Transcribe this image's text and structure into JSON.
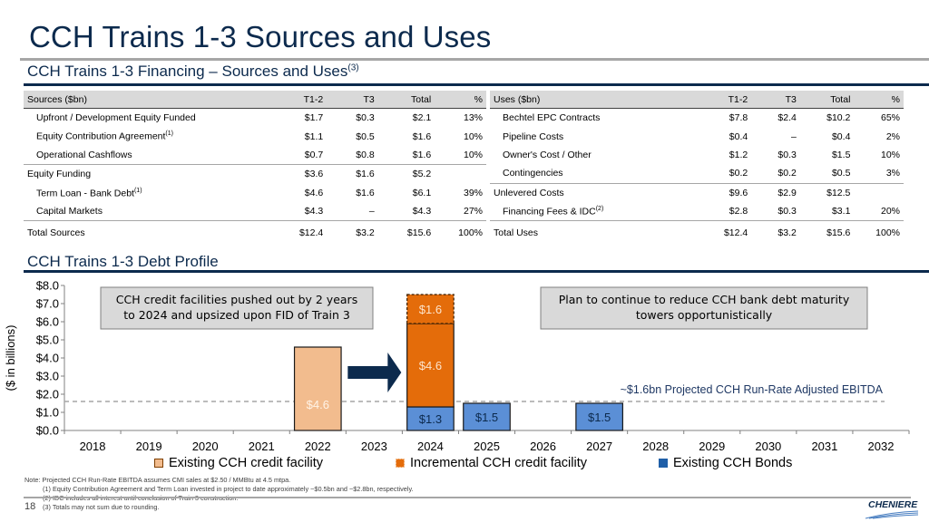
{
  "page": {
    "title": "CCH Trains 1-3 Sources and Uses",
    "financing_heading": "CCH Trains 1-3 Financing – Sources and Uses",
    "financing_heading_sup": "(3)",
    "debt_heading": "CCH Trains 1-3 Debt Profile",
    "page_number": "18",
    "logo_text": "CHENIERE"
  },
  "sources": {
    "header": [
      "Sources ($bn)",
      "T1-2",
      "T3",
      "Total",
      "%"
    ],
    "rows": [
      {
        "label": "Upfront / Development Equity Funded",
        "sup": "",
        "t12": "$1.7",
        "t3": "$0.3",
        "total": "$2.1",
        "pct": "13%"
      },
      {
        "label": "Equity Contribution Agreement",
        "sup": "(1)",
        "t12": "$1.1",
        "t3": "$0.5",
        "total": "$1.6",
        "pct": "10%"
      },
      {
        "label": "Operational Cashflows",
        "sup": "",
        "t12": "$0.7",
        "t3": "$0.8",
        "total": "$1.6",
        "pct": "10%"
      },
      {
        "label": "Equity Funding",
        "sup": "",
        "t12": "$3.6",
        "t3": "$1.6",
        "total": "$5.2",
        "pct": ""
      },
      {
        "label": "Term Loan - Bank Debt",
        "sup": "(1)",
        "t12": "$4.6",
        "t3": "$1.6",
        "total": "$6.1",
        "pct": "39%"
      },
      {
        "label": "Capital Markets",
        "sup": "",
        "t12": "$4.3",
        "t3": "–",
        "total": "$4.3",
        "pct": "27%"
      }
    ],
    "total": {
      "label": "Total Sources",
      "t12": "$12.4",
      "t3": "$3.2",
      "total": "$15.6",
      "pct": "100%"
    }
  },
  "uses": {
    "header": [
      "Uses ($bn)",
      "T1-2",
      "T3",
      "Total",
      "%"
    ],
    "rows": [
      {
        "label": "Bechtel EPC Contracts",
        "sup": "",
        "t12": "$7.8",
        "t3": "$2.4",
        "total": "$10.2",
        "pct": "65%"
      },
      {
        "label": "Pipeline Costs",
        "sup": "",
        "t12": "$0.4",
        "t3": "–",
        "total": "$0.4",
        "pct": "2%"
      },
      {
        "label": "Owner's Cost / Other",
        "sup": "",
        "t12": "$1.2",
        "t3": "$0.3",
        "total": "$1.5",
        "pct": "10%"
      },
      {
        "label": "Contingencies",
        "sup": "",
        "t12": "$0.2",
        "t3": "$0.2",
        "total": "$0.5",
        "pct": "3%"
      },
      {
        "label": "Unlevered Costs",
        "sup": "",
        "t12": "$9.6",
        "t3": "$2.9",
        "total": "$12.5",
        "pct": ""
      },
      {
        "label": "Financing Fees & IDC",
        "sup": "(2)",
        "t12": "$2.8",
        "t3": "$0.3",
        "total": "$3.1",
        "pct": "20%"
      }
    ],
    "total": {
      "label": "Total Uses",
      "t12": "$12.4",
      "t3": "$3.2",
      "total": "$15.6",
      "pct": "100%"
    }
  },
  "chart_data": {
    "type": "bar",
    "stacked": true,
    "title": "CCH Trains 1-3 Debt Profile",
    "xlabel": "",
    "ylabel": "($ in billions)",
    "ylim": [
      0,
      8
    ],
    "yticks": [
      "$0.0",
      "$1.0",
      "$2.0",
      "$3.0",
      "$4.0",
      "$5.0",
      "$6.0",
      "$7.0",
      "$8.0"
    ],
    "categories": [
      "2018",
      "2019",
      "2020",
      "2021",
      "2022",
      "2023",
      "2024",
      "2025",
      "2026",
      "2027",
      "2028",
      "2029",
      "2030",
      "2031",
      "2032"
    ],
    "series": [
      {
        "name": "Existing CCH Bonds",
        "color": "#5b8fd6",
        "values": [
          0,
          0,
          0,
          0,
          0,
          0,
          1.3,
          1.5,
          0,
          1.5,
          0,
          0,
          0,
          0,
          0
        ],
        "labels": [
          "",
          "",
          "",
          "",
          "",
          "",
          "$1.3",
          "$1.5",
          "",
          "$1.5",
          "",
          "",
          "",
          "",
          ""
        ]
      },
      {
        "name": "Existing CCH credit facility",
        "color": "#f2bc8e",
        "values": [
          0,
          0,
          0,
          0,
          4.6,
          0,
          4.6,
          0,
          0,
          0,
          0,
          0,
          0,
          0,
          0
        ],
        "labels": [
          "",
          "",
          "",
          "",
          "$4.6",
          "",
          "$4.6",
          "",
          "",
          "",
          "",
          "",
          "",
          "",
          ""
        ]
      },
      {
        "name": "Incremental CCH credit facility",
        "color": "#e46c0a",
        "values": [
          0,
          0,
          0,
          0,
          0,
          0,
          1.6,
          0,
          0,
          0,
          0,
          0,
          0,
          0,
          0
        ],
        "labels": [
          "",
          "",
          "",
          "",
          "",
          "",
          "$1.6",
          "",
          "",
          "",
          "",
          "",
          "",
          "",
          ""
        ]
      }
    ],
    "reference_line": {
      "value": 1.6,
      "label": "~$1.6bn Projected CCH Run-Rate Adjusted EBITDA"
    },
    "annotations": [
      {
        "text_lines": [
          "CCH credit facilities pushed out by 2 years",
          "to 2024 and upsized upon FID of Train 3"
        ]
      },
      {
        "text_lines": [
          "Plan to continue to reduce CCH bank debt maturity",
          "towers opportunistically"
        ]
      }
    ],
    "legend": [
      "Existing CCH credit facility",
      "Incremental CCH credit facility",
      "Existing CCH Bonds"
    ],
    "legend_placement": "bottom",
    "grid": false
  },
  "notes": [
    "Note:  Projected CCH Run-Rate EBITDA assumes CMI sales at $2.50 / MMBtu at 4.5 mtpa.",
    "(1)  Equity Contribution Agreement and Term Loan invested in project to date approximately ~$0.5bn and ~$2.8bn, respectively.",
    "(2)  IDC includes all interest until conclusion of Train 3 construction.",
    "(3)  Totals may not sum due to rounding."
  ]
}
